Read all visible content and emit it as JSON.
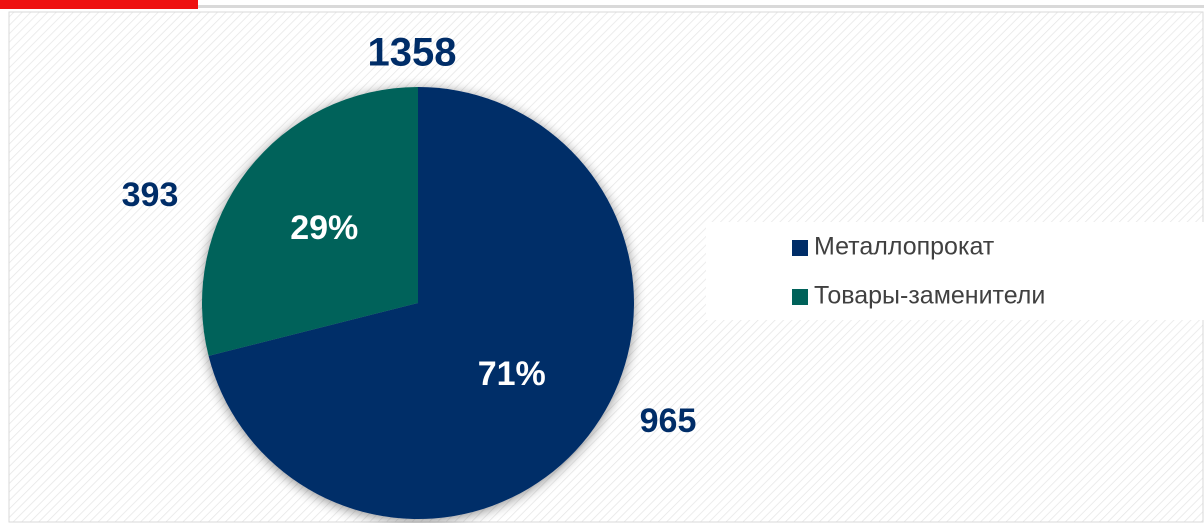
{
  "chart_data": {
    "type": "pie",
    "total": 1358,
    "categories": [
      "Металлопрокат",
      "Товары-заменители"
    ],
    "values": [
      965,
      393
    ],
    "percent_labels": [
      "71%",
      "29%"
    ],
    "colors": [
      "#002d68",
      "#00625a"
    ],
    "legend": "right"
  }
}
